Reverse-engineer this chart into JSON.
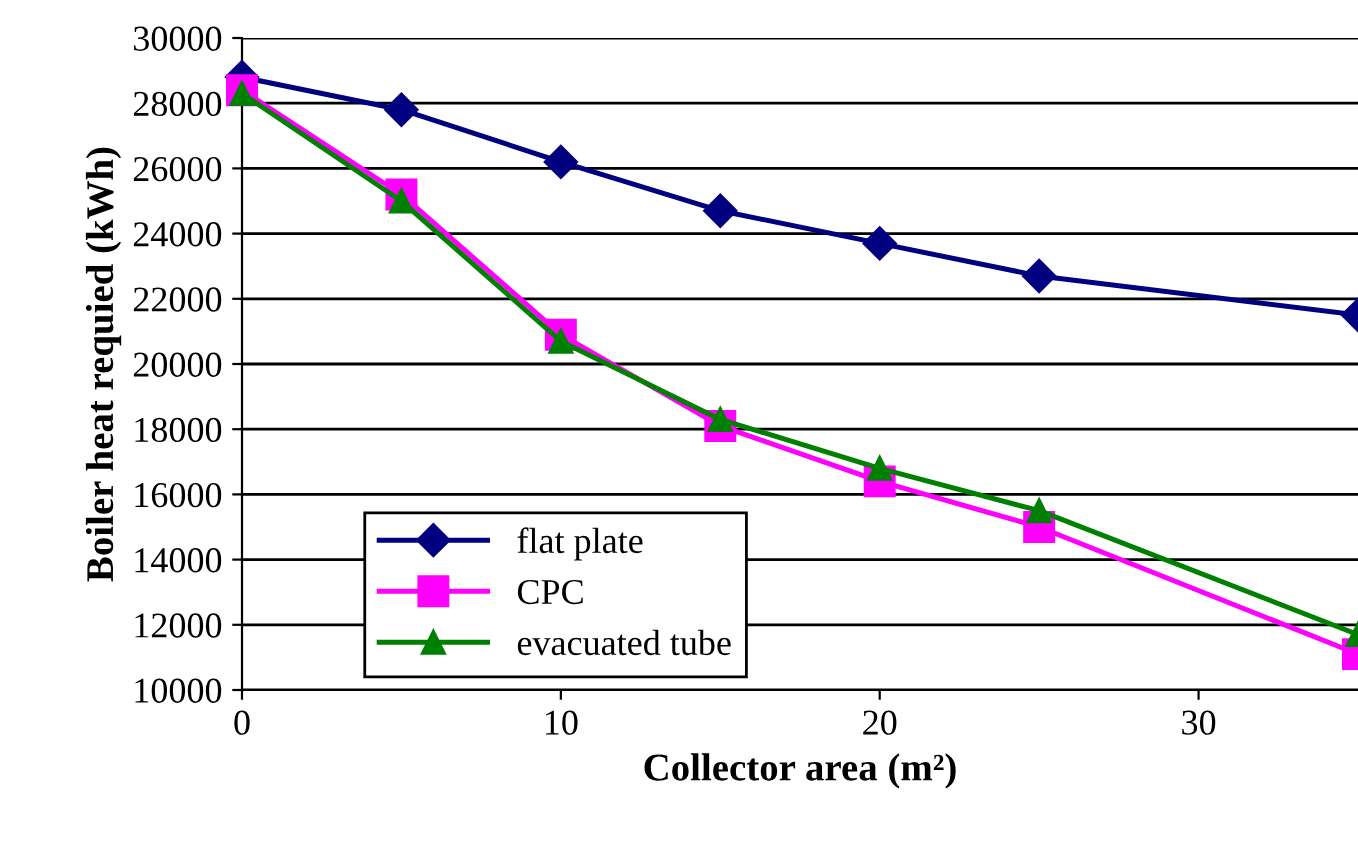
{
  "chart_data": {
    "type": "line",
    "xlabel": "Collector area (m²)",
    "ylabel": "Boiler heat requied (kWh)",
    "x": [
      0,
      5,
      10,
      15,
      20,
      25,
      35
    ],
    "series": [
      {
        "name": "flat plate",
        "color": "#000080",
        "marker": "diamond",
        "values": [
          28800,
          27800,
          26200,
          24700,
          23700,
          22700,
          21500
        ]
      },
      {
        "name": "CPC",
        "color": "#ff00ff",
        "marker": "square",
        "values": [
          28400,
          25200,
          20900,
          18100,
          16400,
          15000,
          11100
        ]
      },
      {
        "name": "evacuated tube",
        "color": "#008000",
        "marker": "triangle",
        "values": [
          28300,
          25000,
          20700,
          18300,
          16800,
          15500,
          11700
        ]
      }
    ],
    "xlim": [
      0,
      35
    ],
    "xticks": [
      0,
      10,
      20,
      30
    ],
    "ylim": [
      10000,
      30000
    ],
    "yticks": [
      10000,
      12000,
      14000,
      16000,
      18000,
      20000,
      22000,
      24000,
      26000,
      28000,
      30000
    ],
    "grid": "y",
    "legend": "bottom left",
    "line_style": "solid"
  }
}
